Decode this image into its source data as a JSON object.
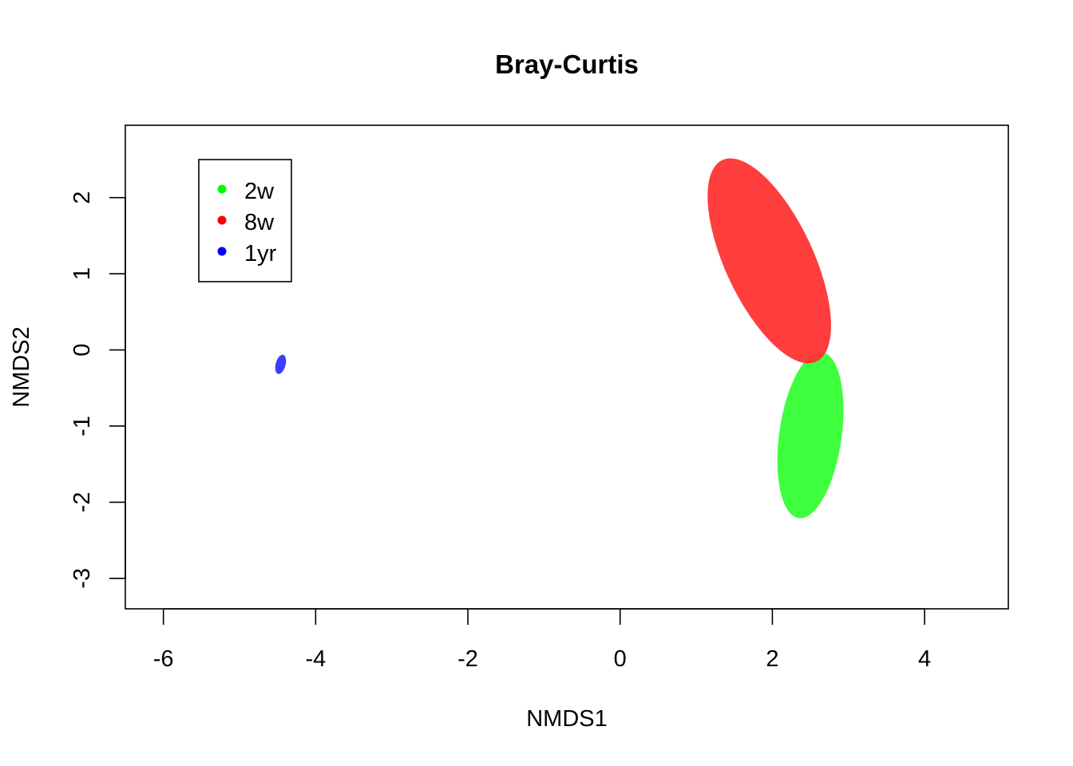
{
  "chart_data": {
    "type": "scatter",
    "title": "Bray-Curtis",
    "xlabel": "NMDS1",
    "ylabel": "NMDS2",
    "xlim": [
      -6.5,
      5.1
    ],
    "ylim": [
      -3.4,
      2.95
    ],
    "xticks": [
      -6,
      -4,
      -2,
      0,
      2,
      4
    ],
    "yticks": [
      -3,
      -2,
      -1,
      0,
      1,
      2
    ],
    "legend_position": "top-left",
    "series": [
      {
        "name": "2w",
        "color": "#00ff00",
        "fill": "#33ff33",
        "ellipse": {
          "cx": 2.5,
          "cy": -1.12,
          "rx": 0.41,
          "ry": 1.1,
          "angle_deg": 8
        }
      },
      {
        "name": "8w",
        "color": "#ff0000",
        "fill": "#ff3333",
        "ellipse": {
          "cx": 1.96,
          "cy": 1.17,
          "rx": 0.58,
          "ry": 1.46,
          "angle_deg": -25
        }
      },
      {
        "name": "1yr",
        "color": "#0000ff",
        "fill": "#3333ff",
        "ellipse": {
          "cx": -4.46,
          "cy": -0.19,
          "rx": 0.065,
          "ry": 0.13,
          "angle_deg": 15
        }
      }
    ]
  }
}
